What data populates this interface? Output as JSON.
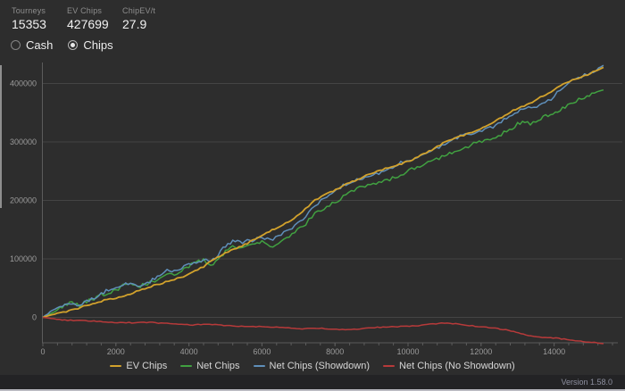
{
  "header": {
    "stats": [
      {
        "label": "Tourneys",
        "value": "15353"
      },
      {
        "label": "EV Chips",
        "value": "427699"
      },
      {
        "label": "ChipEV/t",
        "value": "27.9"
      }
    ]
  },
  "controls": {
    "options": [
      {
        "label": "Cash",
        "selected": false
      },
      {
        "label": "Chips",
        "selected": true
      }
    ]
  },
  "chart_data": {
    "type": "line",
    "title": "",
    "xlabel": "",
    "ylabel": "",
    "x_ticks": [
      0,
      2000,
      4000,
      6000,
      8000,
      10000,
      12000,
      14000
    ],
    "y_ticks": [
      0,
      100000,
      200000,
      300000,
      400000
    ],
    "xlim": [
      0,
      15700
    ],
    "ylim": [
      -45000,
      435000
    ],
    "grid": true,
    "legend_position": "bottom",
    "series": [
      {
        "name": "EV Chips",
        "color": "#d2a22c",
        "jitter": 1800,
        "end_value": 427699,
        "points": [
          [
            0,
            0
          ],
          [
            400,
            7000
          ],
          [
            800,
            13000
          ],
          [
            1200,
            20000
          ],
          [
            1600,
            27000
          ],
          [
            2000,
            34000
          ],
          [
            2400,
            41000
          ],
          [
            2800,
            49000
          ],
          [
            3200,
            57000
          ],
          [
            3600,
            65000
          ],
          [
            4000,
            74000
          ],
          [
            4400,
            86000
          ],
          [
            4700,
            100000
          ],
          [
            5000,
            110000
          ],
          [
            5300,
            119000
          ],
          [
            5600,
            127000
          ],
          [
            5900,
            136000
          ],
          [
            6200,
            146000
          ],
          [
            6500,
            156000
          ],
          [
            6800,
            167000
          ],
          [
            7100,
            181000
          ],
          [
            7450,
            200000
          ],
          [
            7800,
            211000
          ],
          [
            8100,
            221000
          ],
          [
            8400,
            231000
          ],
          [
            8700,
            239000
          ],
          [
            9000,
            246000
          ],
          [
            9300,
            252000
          ],
          [
            9600,
            258000
          ],
          [
            9900,
            265000
          ],
          [
            10200,
            273000
          ],
          [
            10500,
            281000
          ],
          [
            10800,
            291000
          ],
          [
            11030,
            300000
          ],
          [
            11300,
            307000
          ],
          [
            11600,
            314000
          ],
          [
            11900,
            321000
          ],
          [
            12200,
            329000
          ],
          [
            12500,
            339000
          ],
          [
            12800,
            351000
          ],
          [
            13100,
            361000
          ],
          [
            13400,
            369000
          ],
          [
            13700,
            379000
          ],
          [
            14000,
            388000
          ],
          [
            14250,
            400000
          ],
          [
            14500,
            406000
          ],
          [
            14750,
            412000
          ],
          [
            15000,
            418000
          ],
          [
            15200,
            423000
          ],
          [
            15353,
            427699
          ]
        ]
      },
      {
        "name": "Net Chips",
        "color": "#41a141",
        "jitter": 4200,
        "end_value": 389000,
        "points": [
          [
            0,
            0
          ],
          [
            200,
            8000
          ],
          [
            400,
            14000
          ],
          [
            600,
            20000
          ],
          [
            800,
            24000
          ],
          [
            1000,
            19000
          ],
          [
            1200,
            27000
          ],
          [
            1400,
            33000
          ],
          [
            1600,
            40000
          ],
          [
            1800,
            43000
          ],
          [
            2000,
            47000
          ],
          [
            2200,
            53000
          ],
          [
            2400,
            57000
          ],
          [
            2600,
            50000
          ],
          [
            2800,
            56000
          ],
          [
            3000,
            62000
          ],
          [
            3200,
            70000
          ],
          [
            3400,
            78000
          ],
          [
            3600,
            73000
          ],
          [
            3800,
            79000
          ],
          [
            4000,
            86000
          ],
          [
            4200,
            93000
          ],
          [
            4400,
            98000
          ],
          [
            4600,
            91000
          ],
          [
            4800,
            101000
          ],
          [
            5000,
            114000
          ],
          [
            5200,
            121000
          ],
          [
            5400,
            118000
          ],
          [
            5600,
            122000
          ],
          [
            5800,
            126000
          ],
          [
            6000,
            130000
          ],
          [
            6300,
            123000
          ],
          [
            6600,
            133000
          ],
          [
            6900,
            144000
          ],
          [
            7200,
            158000
          ],
          [
            7450,
            178000
          ],
          [
            7700,
            188000
          ],
          [
            8000,
            199000
          ],
          [
            8300,
            210000
          ],
          [
            8600,
            219000
          ],
          [
            8900,
            225000
          ],
          [
            9200,
            232000
          ],
          [
            9500,
            238000
          ],
          [
            9800,
            245000
          ],
          [
            10100,
            252000
          ],
          [
            10400,
            259000
          ],
          [
            10700,
            269000
          ],
          [
            11000,
            278000
          ],
          [
            11200,
            283000
          ],
          [
            11500,
            289000
          ],
          [
            11800,
            295000
          ],
          [
            12100,
            302000
          ],
          [
            12400,
            310000
          ],
          [
            12700,
            320000
          ],
          [
            13000,
            331000
          ],
          [
            13200,
            335000
          ],
          [
            13350,
            329000
          ],
          [
            13500,
            334000
          ],
          [
            13700,
            341000
          ],
          [
            13900,
            348000
          ],
          [
            14100,
            355000
          ],
          [
            14300,
            362000
          ],
          [
            14600,
            370000
          ],
          [
            14900,
            377000
          ],
          [
            15100,
            382000
          ],
          [
            15353,
            389000
          ]
        ]
      },
      {
        "name": "Net Chips (Showdown)",
        "color": "#5f8fba",
        "jitter": 4200,
        "end_value": 431000,
        "points": [
          [
            0,
            0
          ],
          [
            200,
            9000
          ],
          [
            400,
            15000
          ],
          [
            600,
            21000
          ],
          [
            800,
            25000
          ],
          [
            1000,
            21000
          ],
          [
            1200,
            29000
          ],
          [
            1400,
            35000
          ],
          [
            1600,
            41000
          ],
          [
            1800,
            45000
          ],
          [
            2000,
            49000
          ],
          [
            2200,
            55000
          ],
          [
            2400,
            59000
          ],
          [
            2600,
            53000
          ],
          [
            2800,
            59000
          ],
          [
            3000,
            65000
          ],
          [
            3200,
            73000
          ],
          [
            3400,
            81000
          ],
          [
            3600,
            77000
          ],
          [
            3800,
            83000
          ],
          [
            4000,
            90000
          ],
          [
            4200,
            97000
          ],
          [
            4400,
            101000
          ],
          [
            4600,
            96000
          ],
          [
            4800,
            106000
          ],
          [
            5000,
            121000
          ],
          [
            5200,
            129000
          ],
          [
            5400,
            127000
          ],
          [
            5600,
            131000
          ],
          [
            5800,
            135000
          ],
          [
            6000,
            139000
          ],
          [
            6300,
            133000
          ],
          [
            6600,
            143000
          ],
          [
            6900,
            155000
          ],
          [
            7200,
            172000
          ],
          [
            7450,
            195000
          ],
          [
            7700,
            203000
          ],
          [
            8000,
            214000
          ],
          [
            8300,
            226000
          ],
          [
            8600,
            235000
          ],
          [
            8900,
            241000
          ],
          [
            9200,
            248000
          ],
          [
            9500,
            254000
          ],
          [
            9800,
            262000
          ],
          [
            10100,
            270000
          ],
          [
            10400,
            277000
          ],
          [
            10700,
            288000
          ],
          [
            11000,
            297000
          ],
          [
            11200,
            303000
          ],
          [
            11500,
            309000
          ],
          [
            11800,
            315000
          ],
          [
            12100,
            322000
          ],
          [
            12400,
            330000
          ],
          [
            12700,
            341000
          ],
          [
            13000,
            351000
          ],
          [
            13300,
            358000
          ],
          [
            13600,
            364000
          ],
          [
            13750,
            367000
          ],
          [
            14000,
            379000
          ],
          [
            14250,
            393000
          ],
          [
            14500,
            403000
          ],
          [
            14750,
            411000
          ],
          [
            15000,
            419000
          ],
          [
            15150,
            424000
          ],
          [
            15353,
            431000
          ]
        ]
      },
      {
        "name": "Net Chips (No Showdown)",
        "color": "#b73a3a",
        "jitter": 1100,
        "end_value": -45000,
        "points": [
          [
            0,
            0
          ],
          [
            300,
            -2500
          ],
          [
            600,
            -4000
          ],
          [
            1000,
            -5500
          ],
          [
            1400,
            -7000
          ],
          [
            1800,
            -8000
          ],
          [
            2200,
            -8500
          ],
          [
            2600,
            -9000
          ],
          [
            3000,
            -9500
          ],
          [
            3400,
            -10500
          ],
          [
            3800,
            -11000
          ],
          [
            4100,
            -13000
          ],
          [
            4400,
            -12000
          ],
          [
            4800,
            -13500
          ],
          [
            5200,
            -14500
          ],
          [
            5600,
            -15500
          ],
          [
            6000,
            -16000
          ],
          [
            6400,
            -17000
          ],
          [
            6800,
            -18000
          ],
          [
            7100,
            -19500
          ],
          [
            7400,
            -18500
          ],
          [
            7800,
            -20000
          ],
          [
            8200,
            -20500
          ],
          [
            8600,
            -19500
          ],
          [
            9000,
            -18000
          ],
          [
            9400,
            -17000
          ],
          [
            9800,
            -15500
          ],
          [
            10200,
            -14000
          ],
          [
            10600,
            -12000
          ],
          [
            11000,
            -10000
          ],
          [
            11300,
            -11000
          ],
          [
            11600,
            -13000
          ],
          [
            12000,
            -16000
          ],
          [
            12300,
            -18500
          ],
          [
            12600,
            -21000
          ],
          [
            12900,
            -24000
          ],
          [
            13100,
            -27000
          ],
          [
            13300,
            -31000
          ],
          [
            13600,
            -33500
          ],
          [
            13900,
            -35000
          ],
          [
            14200,
            -37000
          ],
          [
            14500,
            -39000
          ],
          [
            14800,
            -41000
          ],
          [
            15100,
            -43000
          ],
          [
            15353,
            -45000
          ]
        ]
      }
    ]
  },
  "footer": {
    "version": "Version 1.58.0"
  },
  "colors": {
    "background": "#2d2d2d",
    "grid": "#444444",
    "axis": "#5c5c5c",
    "tick_text": "#9b9b9b",
    "ev_chips": "#d2a22c",
    "net_chips": "#41a141",
    "net_chips_showdown": "#5f8fba",
    "net_chips_no_showdown": "#b73a3a"
  }
}
